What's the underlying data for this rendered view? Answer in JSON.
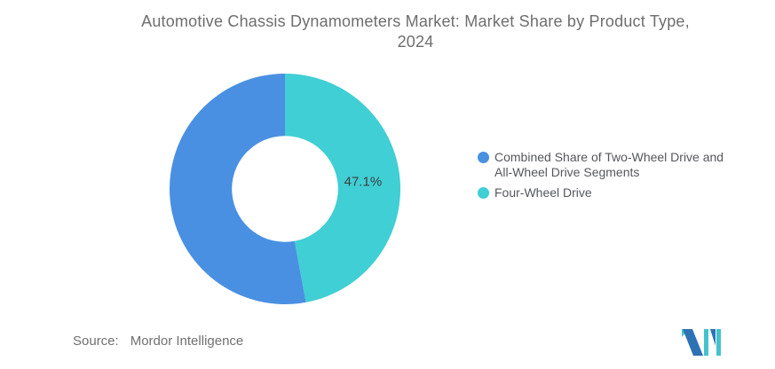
{
  "header": {
    "title_line1": "Automotive Chassis Dynamometers Market: Market Share by Product Type,",
    "title_line2": "2024"
  },
  "chart_data": {
    "type": "pie",
    "subtype": "donut",
    "title": "Automotive Chassis Dynamometers Market: Market Share by Product Type, 2024",
    "slices": [
      {
        "label": "Four-Wheel Drive",
        "value": 47.1,
        "color": "#3FCFD4",
        "data_label": "47.1%"
      },
      {
        "label": "Combined Share of Two-Wheel Drive and All-Wheel Drive Segments",
        "value": 52.9,
        "color": "#4A90E2",
        "data_label": ""
      }
    ],
    "start_angle_deg": 0,
    "direction": "clockwise",
    "inner_radius_ratio": 0.46,
    "data_label_color": "#3F3F3F",
    "data_label_font_px": 15,
    "legend_position": "right",
    "background": "#FFFFFF"
  },
  "source": {
    "label": "Source:",
    "value": "Mordor Intelligence"
  },
  "brand": {
    "name": "Mordor Intelligence logo",
    "colors": {
      "blue": "#2C72B5",
      "teal": "#45C2CE"
    }
  }
}
